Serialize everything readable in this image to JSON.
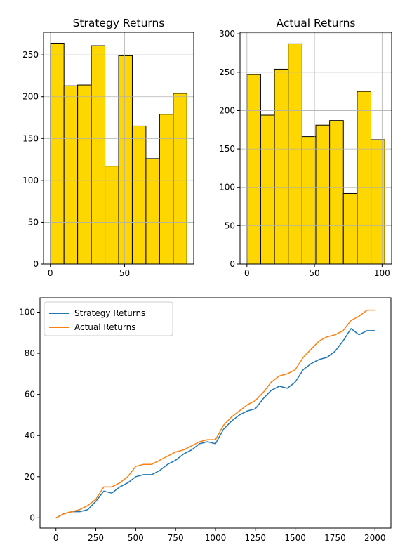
{
  "chart_data": [
    {
      "type": "bar",
      "subtype": "histogram",
      "title": "Strategy Returns",
      "bar_color": "#FFD700",
      "edge_color": "#000000",
      "grid": true,
      "bins": [
        {
          "x0": 0,
          "x1": 9.2,
          "count": 264
        },
        {
          "x0": 9.2,
          "x1": 18.4,
          "count": 213
        },
        {
          "x0": 18.4,
          "x1": 27.6,
          "count": 214
        },
        {
          "x0": 27.6,
          "x1": 36.8,
          "count": 261
        },
        {
          "x0": 36.8,
          "x1": 46.0,
          "count": 117
        },
        {
          "x0": 46.0,
          "x1": 55.2,
          "count": 249
        },
        {
          "x0": 55.2,
          "x1": 64.4,
          "count": 165
        },
        {
          "x0": 64.4,
          "x1": 73.6,
          "count": 126
        },
        {
          "x0": 73.6,
          "x1": 82.8,
          "count": 179
        },
        {
          "x0": 82.8,
          "x1": 92.0,
          "count": 204
        }
      ],
      "xlim": [
        -4.6,
        96.6
      ],
      "ylim": [
        0,
        277
      ],
      "xticks": [
        0,
        50
      ],
      "yticks": [
        0,
        50,
        100,
        150,
        200,
        250
      ]
    },
    {
      "type": "bar",
      "subtype": "histogram",
      "title": "Actual Returns",
      "bar_color": "#FFD700",
      "edge_color": "#000000",
      "grid": true,
      "bins": [
        {
          "x0": 0,
          "x1": 10.2,
          "count": 247
        },
        {
          "x0": 10.2,
          "x1": 20.4,
          "count": 194
        },
        {
          "x0": 20.4,
          "x1": 30.6,
          "count": 254
        },
        {
          "x0": 30.6,
          "x1": 40.8,
          "count": 287
        },
        {
          "x0": 40.8,
          "x1": 51.0,
          "count": 166
        },
        {
          "x0": 51.0,
          "x1": 61.2,
          "count": 181
        },
        {
          "x0": 61.2,
          "x1": 71.4,
          "count": 187
        },
        {
          "x0": 71.4,
          "x1": 81.6,
          "count": 92
        },
        {
          "x0": 81.6,
          "x1": 91.8,
          "count": 225
        },
        {
          "x0": 91.8,
          "x1": 102.0,
          "count": 162
        }
      ],
      "xlim": [
        -5.1,
        107.1
      ],
      "ylim": [
        0,
        302
      ],
      "xticks": [
        0,
        50,
        100
      ],
      "yticks": [
        0,
        50,
        100,
        150,
        200,
        250,
        300
      ]
    },
    {
      "type": "line",
      "title": "",
      "grid": false,
      "legend_position": "upper-left",
      "xlim": [
        -100,
        2100
      ],
      "ylim": [
        -5,
        107
      ],
      "xticks": [
        0,
        250,
        500,
        750,
        1000,
        1250,
        1500,
        1750,
        2000
      ],
      "yticks": [
        0,
        20,
        40,
        60,
        80,
        100
      ],
      "series": [
        {
          "name": "Strategy Returns",
          "color": "#1f77b4",
          "x": [
            0,
            50,
            100,
            150,
            200,
            250,
            300,
            350,
            400,
            450,
            500,
            550,
            600,
            650,
            700,
            750,
            800,
            850,
            900,
            950,
            1000,
            1050,
            1100,
            1150,
            1200,
            1250,
            1300,
            1350,
            1400,
            1450,
            1500,
            1550,
            1600,
            1650,
            1700,
            1750,
            1800,
            1850,
            1900,
            1950,
            2000
          ],
          "y": [
            0,
            2,
            3,
            3,
            4,
            8,
            13,
            12,
            15,
            17,
            20,
            21,
            21,
            23,
            26,
            28,
            31,
            33,
            36,
            37,
            36,
            43,
            47,
            50,
            52,
            53,
            58,
            62,
            64,
            63,
            66,
            72,
            75,
            77,
            78,
            81,
            86,
            92,
            89,
            91,
            91
          ]
        },
        {
          "name": "Actual Returns",
          "color": "#ff7f0e",
          "x": [
            0,
            50,
            100,
            150,
            200,
            250,
            300,
            350,
            400,
            450,
            500,
            550,
            600,
            650,
            700,
            750,
            800,
            850,
            900,
            950,
            1000,
            1050,
            1100,
            1150,
            1200,
            1250,
            1300,
            1350,
            1400,
            1450,
            1500,
            1550,
            1600,
            1650,
            1700,
            1750,
            1800,
            1850,
            1900,
            1950,
            2000
          ],
          "y": [
            0,
            2,
            3,
            4,
            6,
            9,
            15,
            15,
            17,
            20,
            25,
            26,
            26,
            28,
            30,
            32,
            33,
            35,
            37,
            38,
            38,
            45,
            49,
            52,
            55,
            57,
            61,
            66,
            69,
            70,
            72,
            78,
            82,
            86,
            88,
            89,
            91,
            96,
            98,
            101,
            101
          ]
        }
      ]
    }
  ]
}
